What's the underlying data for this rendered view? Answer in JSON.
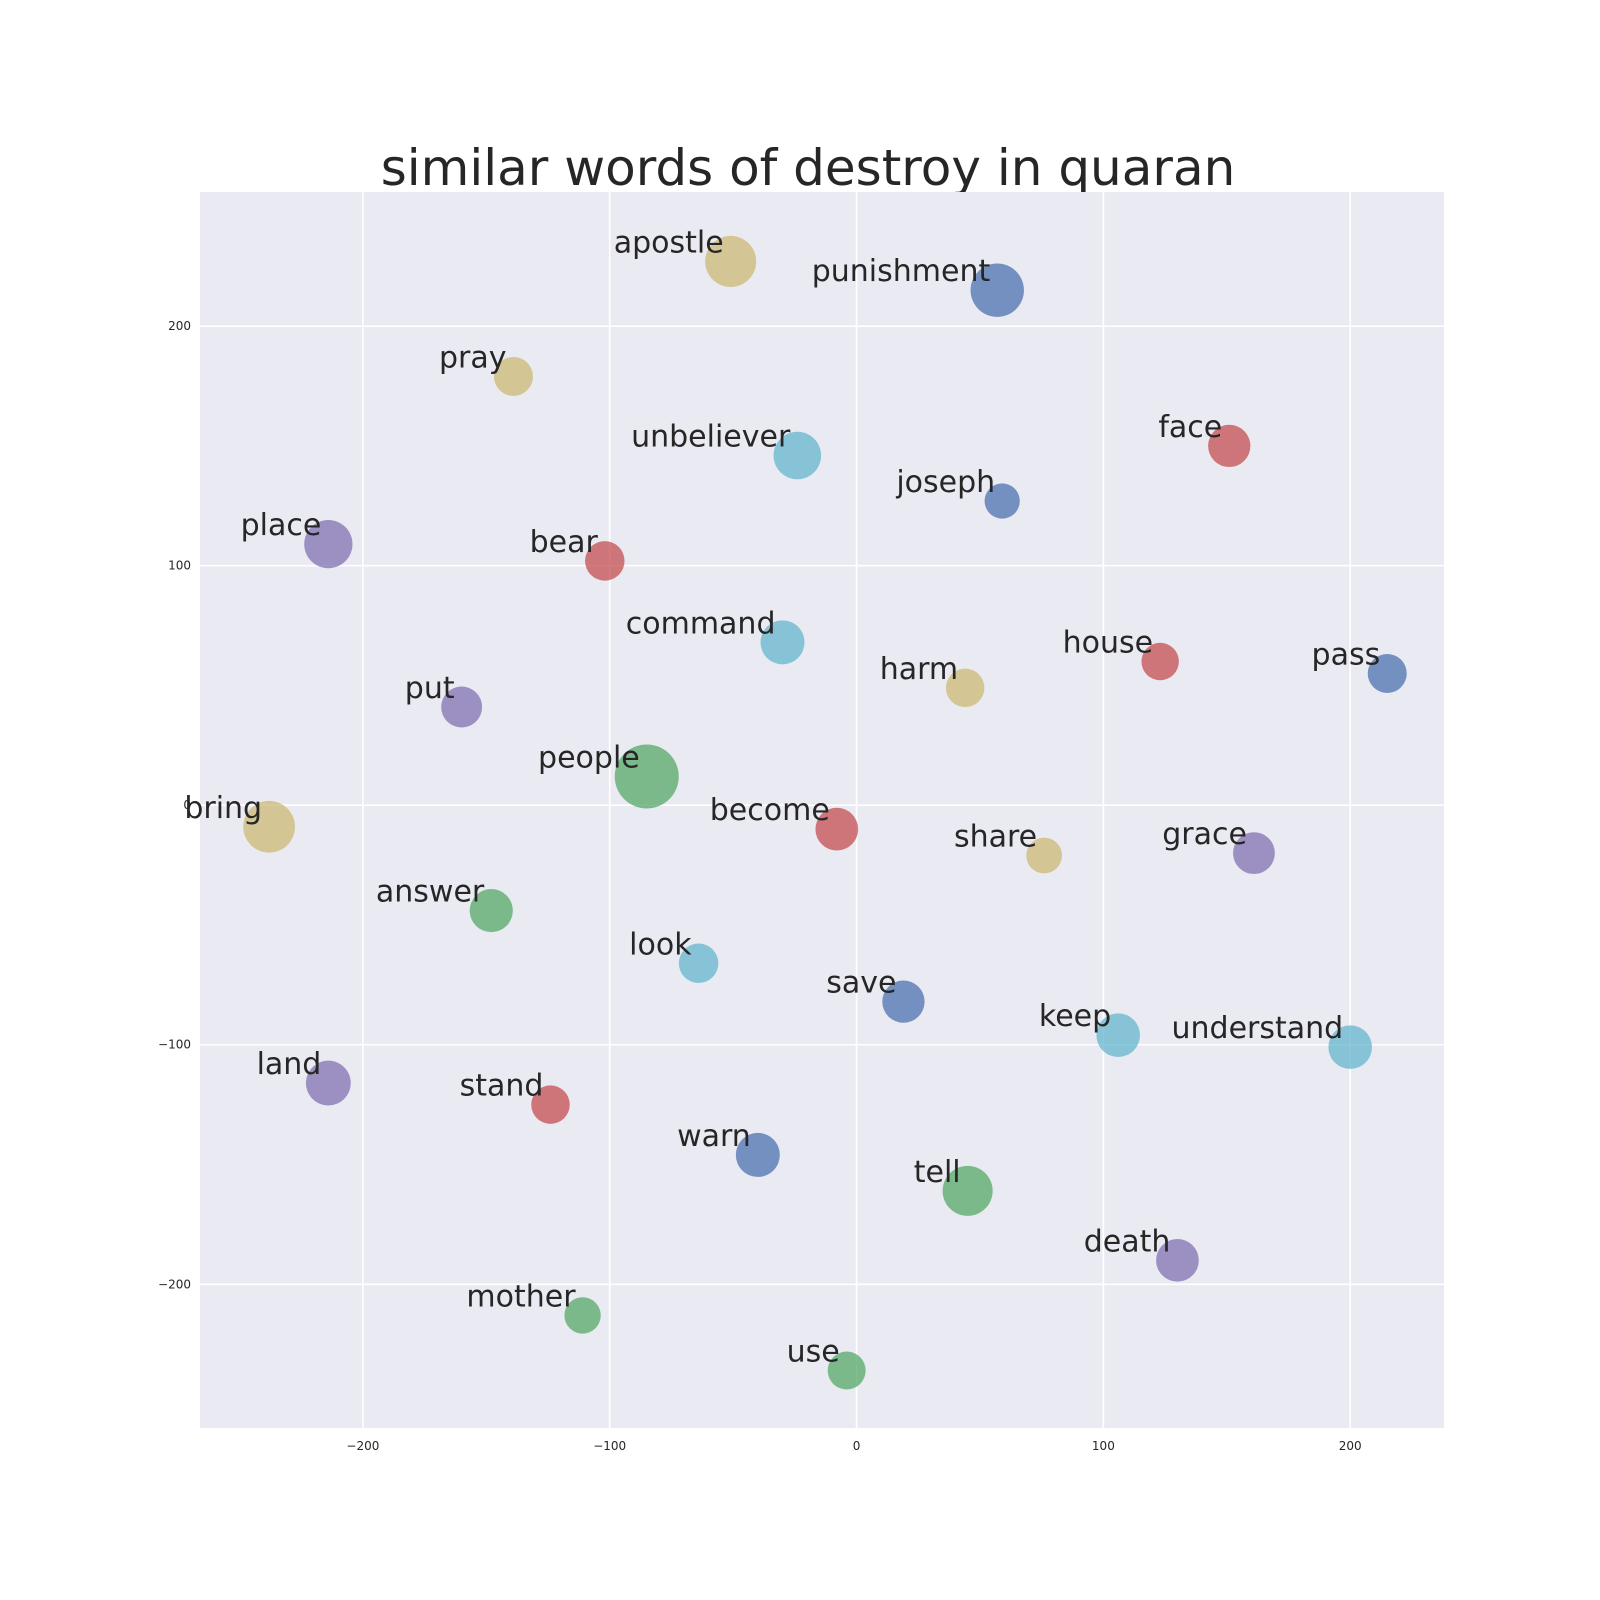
{
  "chart_data": {
    "type": "scatter",
    "title": "similar words of destroy in quaran",
    "xlabel": "",
    "ylabel": "",
    "xlim": [
      -266,
      238
    ],
    "ylim": [
      -260,
      256
    ],
    "xticks": [
      -200,
      -100,
      0,
      100,
      200
    ],
    "yticks": [
      -200,
      -100,
      0,
      100,
      200
    ],
    "xtick_labels": [
      "−200",
      "−100",
      "0",
      "100",
      "200"
    ],
    "ytick_labels": [
      "−200",
      "−100",
      "0",
      "100",
      "200"
    ],
    "grid": true,
    "background": "#eaeaf2",
    "palette": {
      "blue": "#4c72b0",
      "green": "#55a868",
      "red": "#c44e52",
      "purple": "#8172b2",
      "tan": "#ccb974",
      "cyan": "#64b5cd"
    },
    "points": [
      {
        "word": "apostle",
        "x": -51,
        "y": 227,
        "size": 0.55,
        "color": "tan"
      },
      {
        "word": "punishment",
        "x": 57,
        "y": 215,
        "size": 0.62,
        "color": "blue"
      },
      {
        "word": "pray",
        "x": -139,
        "y": 179,
        "size": 0.25,
        "color": "tan"
      },
      {
        "word": "unbeliever",
        "x": -24,
        "y": 146,
        "size": 0.45,
        "color": "cyan"
      },
      {
        "word": "face",
        "x": 151,
        "y": 150,
        "size": 0.32,
        "color": "red"
      },
      {
        "word": "joseph",
        "x": 59,
        "y": 127,
        "size": 0.18,
        "color": "blue"
      },
      {
        "word": "place",
        "x": -214,
        "y": 109,
        "size": 0.47,
        "color": "purple"
      },
      {
        "word": "bear",
        "x": -102,
        "y": 102,
        "size": 0.26,
        "color": "red"
      },
      {
        "word": "command",
        "x": -30,
        "y": 68,
        "size": 0.36,
        "color": "cyan"
      },
      {
        "word": "house",
        "x": 123,
        "y": 60,
        "size": 0.22,
        "color": "red"
      },
      {
        "word": "pass",
        "x": 215,
        "y": 55,
        "size": 0.25,
        "color": "blue"
      },
      {
        "word": "harm",
        "x": 44,
        "y": 49,
        "size": 0.24,
        "color": "tan"
      },
      {
        "word": "put",
        "x": -160,
        "y": 41,
        "size": 0.29,
        "color": "purple"
      },
      {
        "word": "people",
        "x": -85,
        "y": 12,
        "size": 1.0,
        "color": "green"
      },
      {
        "word": "bring",
        "x": -238,
        "y": -9,
        "size": 0.57,
        "color": "tan"
      },
      {
        "word": "become",
        "x": -8,
        "y": -10,
        "size": 0.33,
        "color": "red"
      },
      {
        "word": "share",
        "x": 76,
        "y": -21,
        "size": 0.19,
        "color": "tan"
      },
      {
        "word": "grace",
        "x": 161,
        "y": -20,
        "size": 0.31,
        "color": "purple"
      },
      {
        "word": "answer",
        "x": -148,
        "y": -44,
        "size": 0.34,
        "color": "green"
      },
      {
        "word": "look",
        "x": -64,
        "y": -66,
        "size": 0.26,
        "color": "cyan"
      },
      {
        "word": "save",
        "x": 19,
        "y": -82,
        "size": 0.32,
        "color": "blue"
      },
      {
        "word": "keep",
        "x": 106,
        "y": -96,
        "size": 0.35,
        "color": "cyan"
      },
      {
        "word": "understand",
        "x": 200,
        "y": -101,
        "size": 0.35,
        "color": "cyan"
      },
      {
        "word": "land",
        "x": -214,
        "y": -116,
        "size": 0.38,
        "color": "purple"
      },
      {
        "word": "stand",
        "x": -124,
        "y": -125,
        "size": 0.24,
        "color": "red"
      },
      {
        "word": "warn",
        "x": -40,
        "y": -146,
        "size": 0.36,
        "color": "blue"
      },
      {
        "word": "tell",
        "x": 45,
        "y": -161,
        "size": 0.52,
        "color": "green"
      },
      {
        "word": "death",
        "x": 130,
        "y": -190,
        "size": 0.33,
        "color": "purple"
      },
      {
        "word": "mother",
        "x": -111,
        "y": -213,
        "size": 0.2,
        "color": "green"
      },
      {
        "word": "use",
        "x": -4,
        "y": -236,
        "size": 0.23,
        "color": "green"
      }
    ]
  }
}
